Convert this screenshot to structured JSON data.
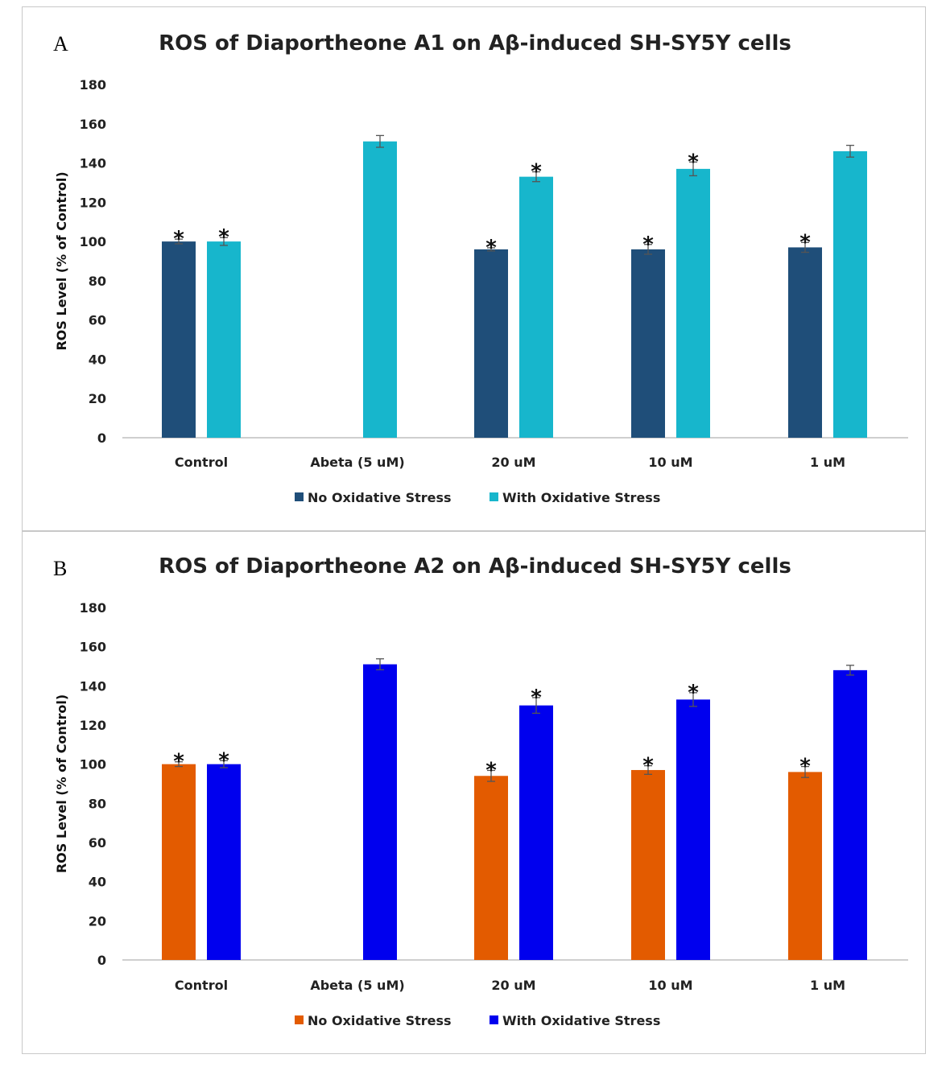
{
  "chart_data": [
    {
      "panel": "A",
      "type": "bar",
      "title": "ROS of Diaportheone A1 on Aβ-induced SH-SY5Y cells",
      "ylabel": "ROS Level (% of Control)",
      "xlabel": "",
      "ylim": [
        0,
        180
      ],
      "yticks": [
        0,
        20,
        40,
        60,
        80,
        100,
        120,
        140,
        160,
        180
      ],
      "categories": [
        "Control",
        "Abeta (5 uM)",
        "20 uM",
        "10 uM",
        "1 uM"
      ],
      "legend_position": "bottom",
      "significance_mark": "*",
      "series": [
        {
          "name": "No Oxidative Stress",
          "color": "#1f4e79",
          "values": [
            100,
            null,
            96,
            96,
            97
          ],
          "errors": [
            1.2,
            null,
            0.8,
            2.5,
            2.5
          ],
          "significant": [
            true,
            false,
            true,
            true,
            true
          ]
        },
        {
          "name": "With Oxidative Stress",
          "color": "#17b6cc",
          "values": [
            100,
            151,
            133,
            137,
            146
          ],
          "errors": [
            2,
            3,
            2.5,
            3.5,
            3
          ],
          "significant": [
            true,
            false,
            true,
            true,
            false
          ]
        }
      ]
    },
    {
      "panel": "B",
      "type": "bar",
      "title": "ROS of Diaportheone A2 on Aβ-induced SH-SY5Y cells",
      "ylabel": "ROS Level (% of Control)",
      "xlabel": "",
      "ylim": [
        0,
        180
      ],
      "yticks": [
        0,
        20,
        40,
        60,
        80,
        100,
        120,
        140,
        160,
        180
      ],
      "categories": [
        "Control",
        "Abeta (5 uM)",
        "20 uM",
        "10 uM",
        "1 uM"
      ],
      "legend_position": "bottom",
      "significance_mark": "*",
      "series": [
        {
          "name": "No Oxidative Stress",
          "color": "#e35b00",
          "values": [
            100,
            null,
            94,
            97,
            96
          ],
          "errors": [
            1.2,
            null,
            2.8,
            2.2,
            2.8
          ],
          "significant": [
            true,
            false,
            true,
            true,
            true
          ]
        },
        {
          "name": "With Oxidative Stress",
          "color": "#0000ee",
          "values": [
            100,
            151,
            130,
            133,
            148
          ],
          "errors": [
            1.8,
            2.8,
            4,
            3.5,
            2.5
          ],
          "significant": [
            true,
            false,
            true,
            true,
            false
          ]
        }
      ]
    }
  ]
}
